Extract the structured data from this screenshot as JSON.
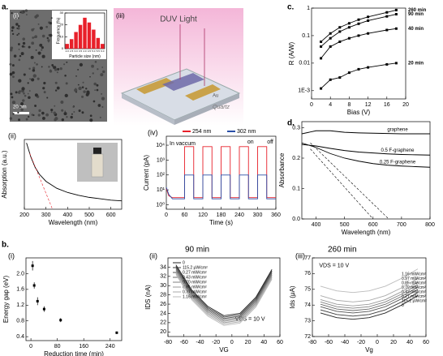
{
  "panels": {
    "a": "a.",
    "b": "b.",
    "c": "c.",
    "d": "d."
  },
  "tem": {
    "label": "(i)",
    "scale_bar": "20 nm"
  },
  "illustration": {
    "label": "(iii)",
    "title": "DUV Light",
    "electrode": "Au",
    "substrate": "Quartz"
  },
  "chart_data": [
    {
      "type": "bar",
      "xlabel": "Particle size (nm)",
      "ylabel": "Frequency (%)",
      "color": "#e8202a",
      "categories": [
        "2.0",
        "2.5",
        "3.0",
        "3.5",
        "4.0",
        "4.5",
        "5.0",
        "5.5",
        "6.0"
      ],
      "values": [
        4,
        8,
        14,
        20,
        26,
        22,
        16,
        9,
        4
      ],
      "ylim": [
        0,
        30
      ],
      "yticks": [
        0,
        10,
        20,
        30
      ]
    },
    {
      "type": "line",
      "label": "(ii)",
      "xlabel": "Wavelength (nm)",
      "ylabel": "Absorption (a.u.)",
      "xlim": [
        200,
        650
      ],
      "xticks": [
        200,
        300,
        400,
        500,
        600
      ],
      "ylim": [
        0,
        1
      ],
      "yticks": [],
      "series": [
        {
          "color": "#000000",
          "x": [
            210,
            230,
            250,
            270,
            300,
            350,
            400,
            450,
            500,
            550,
            600,
            650
          ],
          "values": [
            0.95,
            0.75,
            0.6,
            0.5,
            0.4,
            0.3,
            0.24,
            0.2,
            0.17,
            0.15,
            0.13,
            0.12
          ]
        },
        {
          "color": "#e8202a",
          "dash": true,
          "x": [
            225,
            330
          ],
          "values": [
            0.8,
            0.0
          ]
        }
      ]
    },
    {
      "type": "line",
      "label": "(iv)",
      "xlabel": "Time (s)",
      "ylabel": "Current (pA)",
      "ylog": true,
      "legend": "box",
      "annotations": [
        "In vaccum",
        "on",
        "off"
      ],
      "xlim": [
        0,
        360
      ],
      "xticks": [
        0,
        60,
        120,
        180,
        240,
        300,
        360
      ],
      "ylim": [
        0.5,
        40000
      ],
      "yticks": [
        {
          "value": 1,
          "label": "10⁰"
        },
        {
          "value": 10,
          "label": "10¹"
        },
        {
          "value": 100,
          "label": "10²"
        },
        {
          "value": 1000,
          "label": "10³"
        },
        {
          "value": 10000,
          "label": "10⁴"
        }
      ],
      "x": [
        0,
        8,
        20,
        60,
        60,
        90,
        90,
        120,
        120,
        150,
        150,
        180,
        180,
        210,
        210,
        240,
        240,
        270,
        270,
        300,
        300,
        330,
        330,
        360
      ],
      "series": [
        {
          "name": "254 nm",
          "color": "#e8202a",
          "values": [
            12,
            4,
            3,
            3,
            8000,
            8000,
            3,
            3,
            8000,
            8000,
            3,
            3,
            8000,
            8000,
            3,
            3,
            8000,
            8000,
            3,
            3,
            8000,
            8000,
            3,
            3
          ]
        },
        {
          "name": "302 nm",
          "color": "#2a4fa8",
          "values": [
            15,
            5,
            2.5,
            2.5,
            100,
            100,
            2.5,
            2.5,
            100,
            100,
            2.5,
            2.5,
            100,
            100,
            2.5,
            2.5,
            100,
            100,
            2.5,
            2.5,
            100,
            100,
            2.5,
            2.5
          ]
        }
      ]
    },
    {
      "type": "line",
      "markers": true,
      "legend": "end",
      "xlabel": "Bias (V)",
      "ylabel": "R (A/W)",
      "ylog": true,
      "xlim": [
        0,
        20
      ],
      "xticks": [
        0,
        4,
        8,
        12,
        16,
        20
      ],
      "ylim": [
        0.0005,
        1
      ],
      "yticks": [
        {
          "value": 0.001,
          "label": "1E-3"
        },
        0.01,
        0.1,
        1
      ],
      "x": [
        2,
        4,
        6,
        8,
        10,
        12,
        16,
        18
      ],
      "series": [
        {
          "name": "260 min",
          "color": "#000000",
          "values": [
            0.06,
            0.12,
            0.2,
            0.28,
            0.38,
            0.48,
            0.7,
            0.85
          ]
        },
        {
          "name": "90 min",
          "color": "#000000",
          "values": [
            0.04,
            0.08,
            0.14,
            0.2,
            0.27,
            0.35,
            0.5,
            0.6
          ]
        },
        {
          "name": "40 min",
          "color": "#000000",
          "values": [
            0.015,
            0.04,
            0.06,
            0.08,
            0.1,
            0.12,
            0.16,
            0.18
          ]
        },
        {
          "name": "20 min",
          "color": "#000000",
          "values": [
            0.0012,
            0.0025,
            0.003,
            0.0045,
            0.006,
            0.007,
            0.009,
            0.01
          ]
        }
      ]
    },
    {
      "type": "line",
      "legend": "above",
      "xlabel": "Wavelength (nm)",
      "ylabel": "Absorbance",
      "xlim": [
        350,
        800
      ],
      "xticks": [
        400,
        500,
        600,
        700,
        800
      ],
      "ylim": [
        0,
        0.32
      ],
      "yticks": [
        {
          "value": 0,
          "label": "0.0"
        },
        0.1,
        0.2,
        0.3
      ],
      "series": [
        {
          "name": "graphene",
          "color": "#000000",
          "x": [
            350,
            400,
            450,
            500,
            550,
            600,
            650,
            700,
            750,
            800
          ],
          "values": [
            0.28,
            0.29,
            0.29,
            0.285,
            0.283,
            0.282,
            0.281,
            0.28,
            0.28,
            0.28
          ]
        },
        {
          "name": "0.5 F-graphene",
          "color": "#000000",
          "x": [
            350,
            400,
            450,
            500,
            550,
            600,
            650,
            700,
            750,
            800
          ],
          "values": [
            0.245,
            0.24,
            0.232,
            0.225,
            0.22,
            0.217,
            0.214,
            0.212,
            0.211,
            0.21
          ]
        },
        {
          "name": "0.25 F-graphene",
          "color": "#000000",
          "x": [
            350,
            400,
            450,
            500,
            550,
            600,
            650,
            700,
            750,
            800
          ],
          "values": [
            0.25,
            0.235,
            0.215,
            0.2,
            0.19,
            0.182,
            0.177,
            0.174,
            0.172,
            0.17
          ]
        },
        {
          "color": "#000000",
          "dash": true,
          "x": [
            380,
            655
          ],
          "values": [
            0.25,
            0.0
          ]
        },
        {
          "color": "#000000",
          "dash": true,
          "x": [
            380,
            600
          ],
          "values": [
            0.23,
            0.0
          ]
        }
      ]
    },
    {
      "type": "scatter",
      "label": "(i)",
      "xlabel": "Reduction time (min)",
      "ylabel": "Energy gap (eV)",
      "xlim": [
        -15,
        275
      ],
      "xticks": [
        0,
        80,
        160,
        240
      ],
      "ylim": [
        0.3,
        2.4
      ],
      "yticks": [
        0.4,
        0.8,
        1.2,
        1.6,
        {
          "value": 2,
          "label": "2.0"
        }
      ],
      "series": [
        {
          "color": "#000000",
          "x": [
            5,
            10,
            20,
            40,
            90,
            260
          ],
          "values": [
            2.2,
            1.7,
            1.3,
            1.1,
            0.82,
            0.5
          ],
          "errors": [
            0.12,
            0.08,
            0.1,
            0.07,
            0.05,
            0.03
          ]
        }
      ]
    },
    {
      "type": "line",
      "label": "(ii)",
      "title": "90 min",
      "legend": "box",
      "annotations": [
        "VDS = 10 V"
      ],
      "xlabel": "VG",
      "ylabel": "IDS (nA)",
      "xlim": [
        -80,
        60
      ],
      "xticks": [
        -80,
        -60,
        -40,
        -20,
        0,
        20,
        40,
        60
      ],
      "ylim": [
        19,
        36
      ],
      "yticks": [
        20,
        22,
        24,
        26,
        28,
        30,
        32,
        34
      ],
      "x": [
        -70,
        -50,
        -30,
        -10,
        10,
        30,
        50
      ],
      "series": [
        {
          "name": "0",
          "color": "#222222",
          "values": [
            34.5,
            29,
            25.5,
            23.5,
            24,
            27.5,
            33.5
          ]
        },
        {
          "name": "115.2 μW/cm²",
          "color": "#3a3a3a",
          "values": [
            34.2,
            28.7,
            25.2,
            23.2,
            23.7,
            27.2,
            33.2
          ]
        },
        {
          "name": "0.27 mW/cm²",
          "color": "#525252",
          "values": [
            33.9,
            28.4,
            24.9,
            22.9,
            23.4,
            26.9,
            32.9
          ]
        },
        {
          "name": "0.43 mW/cm²",
          "color": "#6a6a6a",
          "values": [
            33.6,
            28.1,
            24.6,
            22.6,
            23.1,
            26.6,
            32.6
          ]
        },
        {
          "name": "0.70 mW/cm²",
          "color": "#828282",
          "values": [
            33.3,
            27.8,
            24.3,
            22.3,
            22.8,
            26.3,
            32.3
          ]
        },
        {
          "name": "0.85 mW/cm²",
          "color": "#9a9a9a",
          "values": [
            33,
            27.5,
            24,
            22,
            22.5,
            26,
            32
          ]
        },
        {
          "name": "0.97 mW/cm²",
          "color": "#aaaaaa",
          "values": [
            32.7,
            27.2,
            23.7,
            21.7,
            22.2,
            25.7,
            31.7
          ]
        },
        {
          "name": "1.16 mW/cm²",
          "color": "#bbbbbb",
          "values": [
            32.4,
            26.9,
            23.4,
            21.4,
            21.9,
            25.4,
            31.4
          ]
        }
      ]
    },
    {
      "type": "line",
      "label": "(iii)",
      "title": "260 min",
      "legend": "column",
      "annotations": [
        "VDS = 10 V"
      ],
      "xlabel": "Vg",
      "ylabel": "Ids (μA)",
      "xlim": [
        -80,
        60
      ],
      "xticks": [
        -80,
        -60,
        -40,
        -20,
        0,
        20,
        40,
        60
      ],
      "ylim": [
        72,
        77
      ],
      "yticks": [
        72,
        73,
        74,
        75,
        76,
        77
      ],
      "x": [
        -70,
        -50,
        -30,
        -10,
        10,
        30,
        50
      ],
      "series": [
        {
          "name": "0",
          "color": "#222222",
          "values": [
            73.5,
            73.2,
            73.1,
            73.2,
            73.5,
            74,
            74.6
          ]
        },
        {
          "name": "115.2 μW/cm²",
          "color": "#3a3a3a",
          "values": [
            73.7,
            73.4,
            73.3,
            73.4,
            73.7,
            74.2,
            74.8
          ]
        },
        {
          "name": "0.27 mW/cm²",
          "color": "#525252",
          "values": [
            73.9,
            73.6,
            73.5,
            73.6,
            73.9,
            74.4,
            75
          ]
        },
        {
          "name": "0.43 mW/cm²",
          "color": "#6a6a6a",
          "values": [
            74.05,
            73.75,
            73.65,
            73.75,
            74.05,
            74.55,
            75.15
          ]
        },
        {
          "name": "0.70 mW/cm²",
          "color": "#828282",
          "values": [
            74.2,
            73.9,
            73.8,
            73.9,
            74.2,
            74.7,
            75.3
          ]
        },
        {
          "name": "0.85 mW/cm²",
          "color": "#9a9a9a",
          "values": [
            74.35,
            74.05,
            73.95,
            74.05,
            74.35,
            74.85,
            75.45
          ]
        },
        {
          "name": "0.97 mW/cm²",
          "color": "#aaaaaa",
          "values": [
            74.6,
            74.3,
            74.2,
            74.3,
            74.6,
            75.1,
            75.7
          ]
        },
        {
          "name": "1.16 mW/cm²",
          "color": "#bbbbbb",
          "values": [
            75.2,
            74.9,
            74.8,
            74.9,
            75.2,
            75.7,
            76.3
          ]
        }
      ]
    }
  ]
}
